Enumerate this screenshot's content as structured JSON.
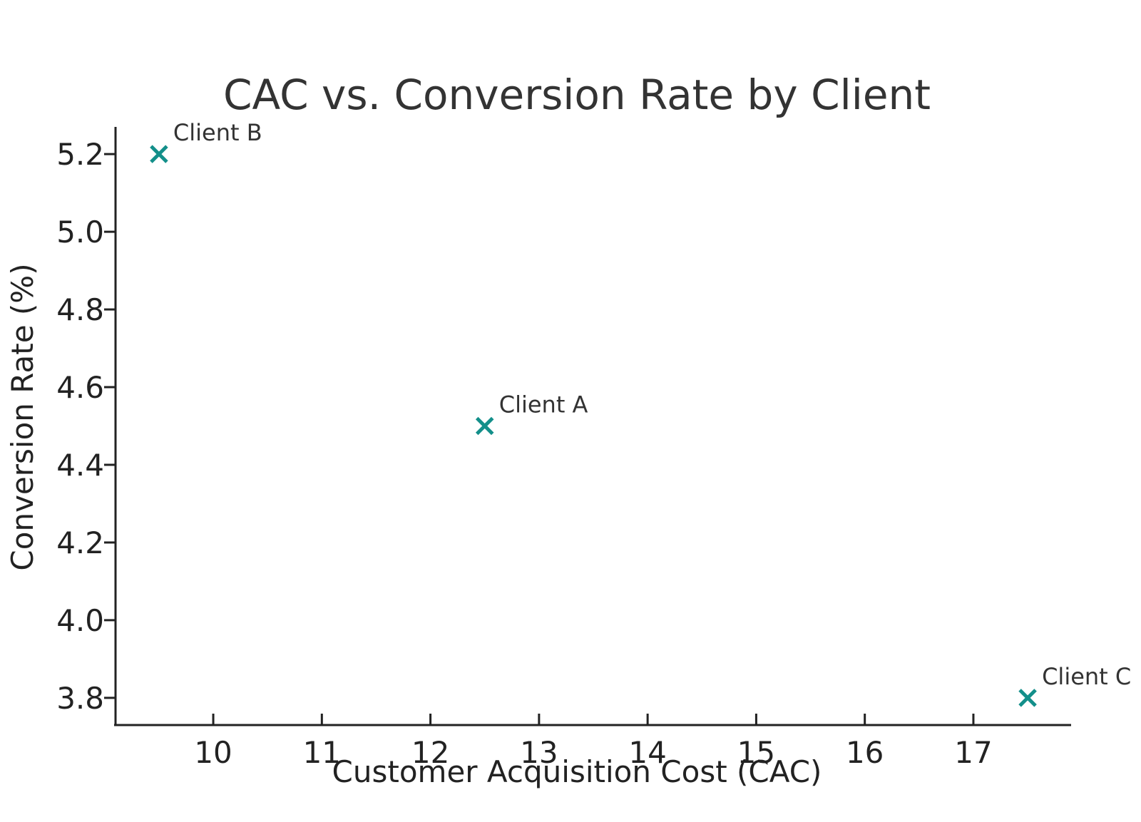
{
  "chart_data": {
    "type": "scatter",
    "title": "CAC vs. Conversion Rate by Client",
    "xlabel": "Customer Acquisition Cost (CAC)",
    "ylabel": "Conversion Rate (%)",
    "xlim": [
      9.1,
      17.9
    ],
    "ylim": [
      3.73,
      5.27
    ],
    "x_ticks": [
      10,
      11,
      12,
      13,
      14,
      15,
      16,
      17
    ],
    "y_ticks": [
      3.8,
      4.0,
      4.2,
      4.4,
      4.6,
      4.8,
      5.0,
      5.2
    ],
    "grid": false,
    "marker": "x",
    "marker_color": "#138f8a",
    "points": [
      {
        "label": "Client A",
        "x": 12.5,
        "y": 4.5
      },
      {
        "label": "Client B",
        "x": 9.5,
        "y": 5.2
      },
      {
        "label": "Client C",
        "x": 17.5,
        "y": 3.8
      }
    ]
  }
}
